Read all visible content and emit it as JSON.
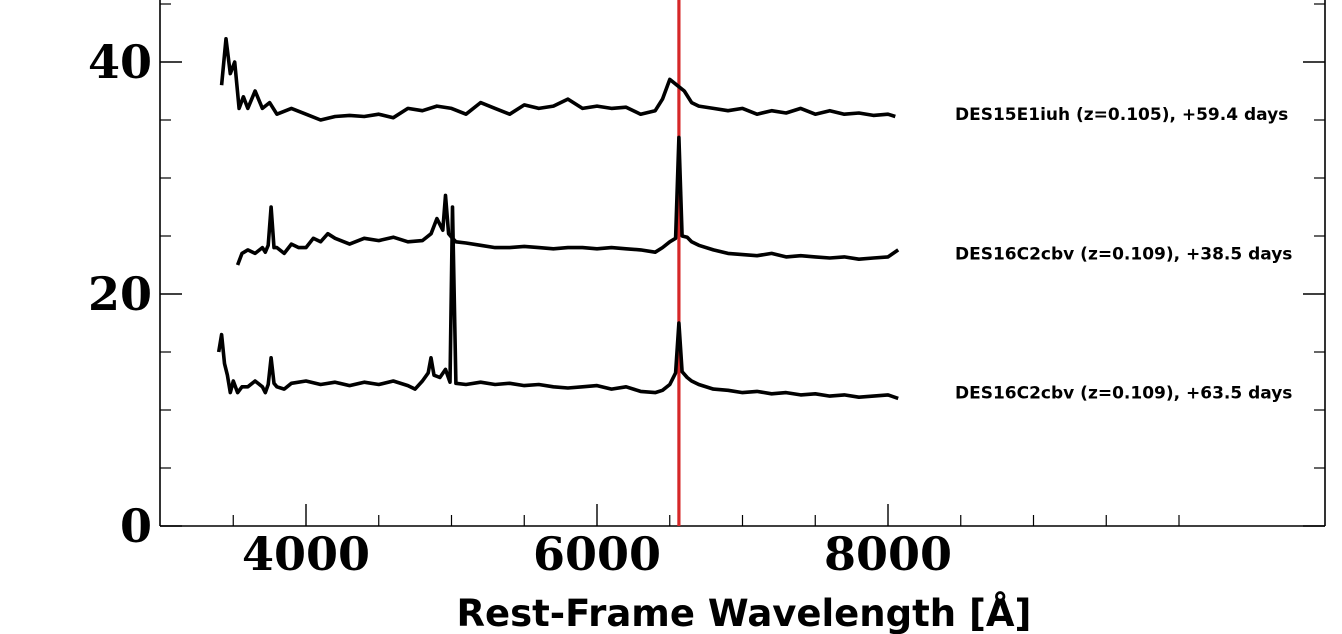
{
  "chart_data": {
    "type": "line",
    "xlabel": "Rest-Frame Wavelength [Å]",
    "ylabel": "",
    "xlim": [
      3000,
      10000
    ],
    "ylim": [
      0,
      45
    ],
    "x_ticks": [
      4000,
      6000,
      8000
    ],
    "y_ticks": [
      0,
      20,
      40
    ],
    "reference_line": {
      "x": 6563,
      "color": "#d62728"
    },
    "grid": false,
    "series": [
      {
        "name": "DES15E1iuh (z=0.105), +59.4 days",
        "label_y": 35.5,
        "x": [
          3420,
          3450,
          3480,
          3510,
          3540,
          3570,
          3600,
          3650,
          3700,
          3750,
          3800,
          3900,
          4000,
          4100,
          4200,
          4300,
          4400,
          4500,
          4600,
          4700,
          4800,
          4900,
          5000,
          5100,
          5200,
          5300,
          5400,
          5500,
          5600,
          5700,
          5800,
          5900,
          6000,
          6100,
          6200,
          6300,
          6400,
          6450,
          6500,
          6550,
          6600,
          6650,
          6700,
          6800,
          6900,
          7000,
          7100,
          7200,
          7300,
          7400,
          7500,
          7600,
          7700,
          7800,
          7900,
          8000,
          8050
        ],
        "values": [
          38,
          42,
          39,
          40,
          36,
          37,
          36,
          37.5,
          36,
          36.5,
          35.5,
          36,
          35.5,
          35,
          35.3,
          35.4,
          35.3,
          35.5,
          35.2,
          36,
          35.8,
          36.2,
          36,
          35.5,
          36.5,
          36,
          35.5,
          36.3,
          36,
          36.2,
          36.8,
          36,
          36.2,
          36,
          36.1,
          35.5,
          35.8,
          36.8,
          38.5,
          38,
          37.5,
          36.5,
          36.2,
          36,
          35.8,
          36,
          35.5,
          35.8,
          35.6,
          36,
          35.5,
          35.8,
          35.5,
          35.6,
          35.4,
          35.5,
          35.3
        ]
      },
      {
        "name": "DES16C2cbv (z=0.109), +38.5 days",
        "label_y": 23.5,
        "x": [
          3530,
          3560,
          3600,
          3650,
          3700,
          3720,
          3740,
          3760,
          3780,
          3800,
          3850,
          3900,
          3950,
          4000,
          4050,
          4100,
          4150,
          4200,
          4300,
          4400,
          4500,
          4600,
          4700,
          4800,
          4860,
          4900,
          4940,
          4959,
          4980,
          5007,
          5030,
          5100,
          5200,
          5300,
          5400,
          5500,
          5600,
          5700,
          5800,
          5900,
          6000,
          6100,
          6200,
          6300,
          6400,
          6450,
          6500,
          6540,
          6563,
          6585,
          6620,
          6650,
          6700,
          6800,
          6900,
          7000,
          7100,
          7200,
          7300,
          7400,
          7500,
          7600,
          7700,
          7800,
          7900,
          8000,
          8070
        ],
        "values": [
          22.5,
          23.5,
          23.8,
          23.5,
          24,
          23.6,
          24.2,
          27.5,
          24,
          24,
          23.5,
          24.3,
          24,
          24,
          24.8,
          24.5,
          25.2,
          24.8,
          24.3,
          24.8,
          24.6,
          24.9,
          24.5,
          24.6,
          25.2,
          26.5,
          25.5,
          28.5,
          25.2,
          24.8,
          24.5,
          24.4,
          24.2,
          24,
          24,
          24.1,
          24,
          23.9,
          24,
          24,
          23.9,
          24,
          23.9,
          23.8,
          23.6,
          24,
          24.5,
          24.8,
          33.5,
          25,
          24.9,
          24.5,
          24.2,
          23.8,
          23.5,
          23.4,
          23.3,
          23.5,
          23.2,
          23.3,
          23.2,
          23.1,
          23.2,
          23,
          23.1,
          23.2,
          23.8
        ]
      },
      {
        "name": "DES16C2cbv (z=0.109), +63.5 days",
        "label_y": 11.5,
        "x": [
          3400,
          3420,
          3440,
          3460,
          3480,
          3500,
          3530,
          3560,
          3600,
          3650,
          3700,
          3720,
          3740,
          3760,
          3780,
          3800,
          3850,
          3900,
          4000,
          4100,
          4200,
          4300,
          4400,
          4500,
          4600,
          4700,
          4750,
          4800,
          4840,
          4859,
          4880,
          4920,
          4959,
          4990,
          5007,
          5030,
          5100,
          5200,
          5300,
          5400,
          5500,
          5600,
          5700,
          5800,
          5900,
          6000,
          6100,
          6200,
          6300,
          6400,
          6450,
          6500,
          6540,
          6563,
          6585,
          6620,
          6650,
          6700,
          6800,
          6900,
          7000,
          7100,
          7200,
          7300,
          7400,
          7500,
          7600,
          7700,
          7800,
          7900,
          8000,
          8070
        ],
        "values": [
          15,
          16.5,
          14,
          13,
          11.5,
          12.5,
          11.5,
          12,
          12,
          12.5,
          12,
          11.5,
          12.2,
          14.5,
          12.3,
          12,
          11.8,
          12.3,
          12.5,
          12.2,
          12.4,
          12.1,
          12.4,
          12.2,
          12.5,
          12.1,
          11.8,
          12.5,
          13.2,
          14.5,
          13,
          12.8,
          13.5,
          12.4,
          27.5,
          12.3,
          12.2,
          12.4,
          12.2,
          12.3,
          12.1,
          12.2,
          12,
          11.9,
          12,
          12.1,
          11.8,
          12,
          11.6,
          11.5,
          11.7,
          12.2,
          13.2,
          17.5,
          13.3,
          12.8,
          12.5,
          12.2,
          11.8,
          11.7,
          11.5,
          11.6,
          11.4,
          11.5,
          11.3,
          11.4,
          11.2,
          11.3,
          11.1,
          11.2,
          11.3,
          11
        ]
      }
    ]
  }
}
